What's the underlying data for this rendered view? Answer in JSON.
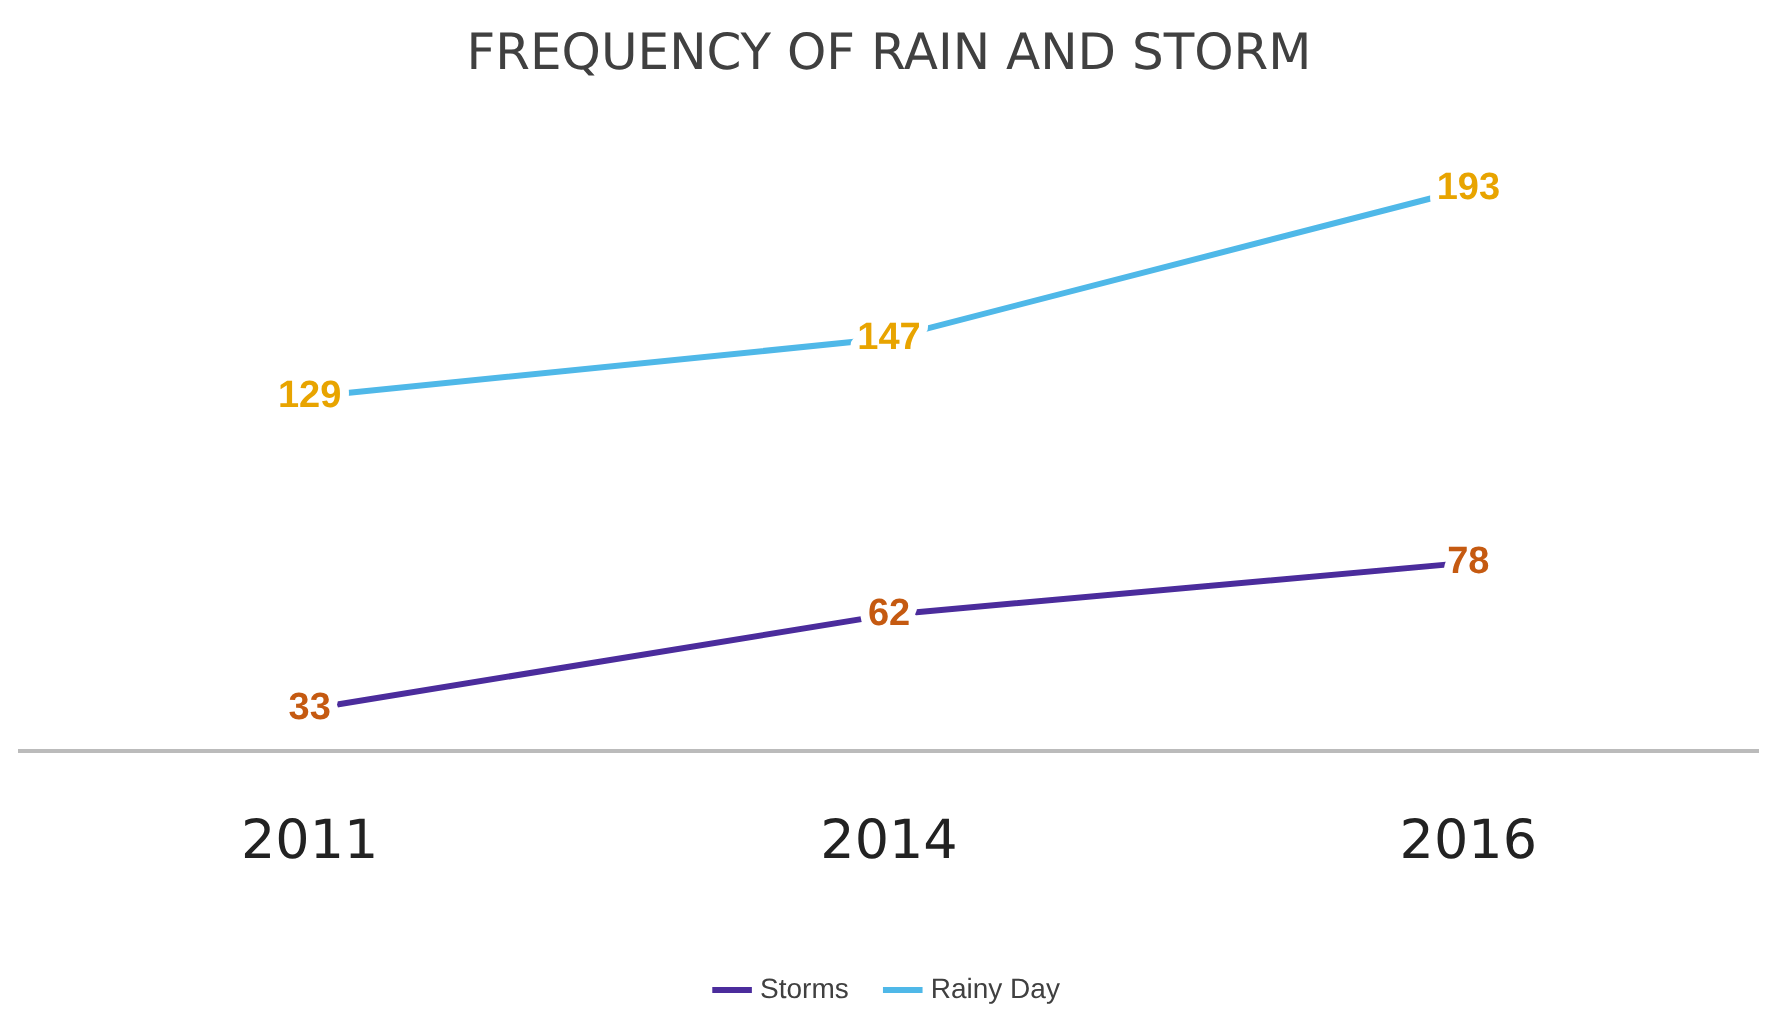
{
  "chart_data": {
    "type": "line",
    "title": "FREQUENCY OF RAIN AND STORM",
    "categories": [
      "2011",
      "2014",
      "2016"
    ],
    "series": [
      {
        "name": "Storms",
        "color": "#4b2c9c",
        "values": [
          33,
          62,
          78
        ]
      },
      {
        "name": "Rainy Day",
        "color": "#4fb8e8",
        "values": [
          129,
          147,
          193
        ]
      }
    ],
    "data_labels": true,
    "legend": "bottom",
    "marker": "none",
    "grid": false,
    "tick_labels": "x"
  }
}
